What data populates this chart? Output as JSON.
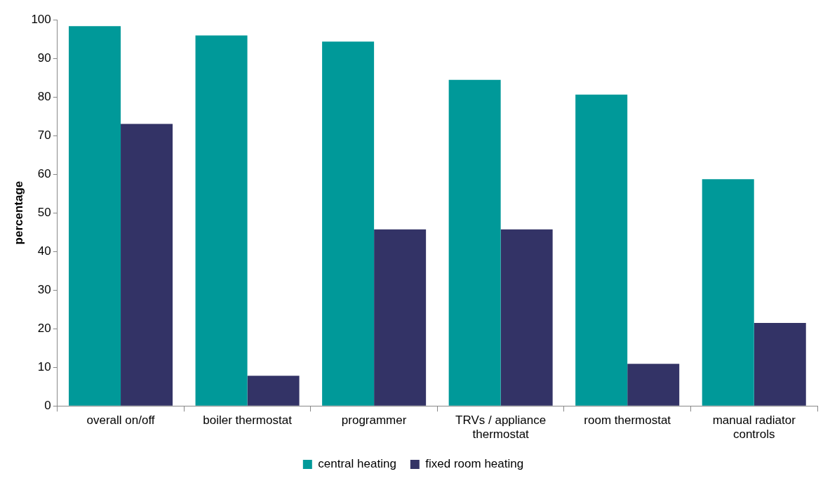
{
  "chart_data": {
    "type": "bar",
    "ylabel": "percentage",
    "categories": [
      "overall on/off",
      "boiler thermostat",
      "programmer",
      "TRVs / appliance thermostat",
      "room thermostat",
      "manual radiator controls"
    ],
    "series": [
      {
        "name": "central heating",
        "color": "#009999",
        "values": [
          98.3,
          95.9,
          94.3,
          84.4,
          80.6,
          58.7
        ]
      },
      {
        "name": "fixed room heating",
        "color": "#333366",
        "values": [
          73.0,
          7.8,
          45.7,
          45.7,
          10.9,
          21.5
        ]
      }
    ],
    "ylim": [
      0,
      100
    ],
    "yticks": [
      0,
      10,
      20,
      30,
      40,
      50,
      60,
      70,
      80,
      90,
      100
    ],
    "grid": false,
    "legend": "bottom"
  }
}
